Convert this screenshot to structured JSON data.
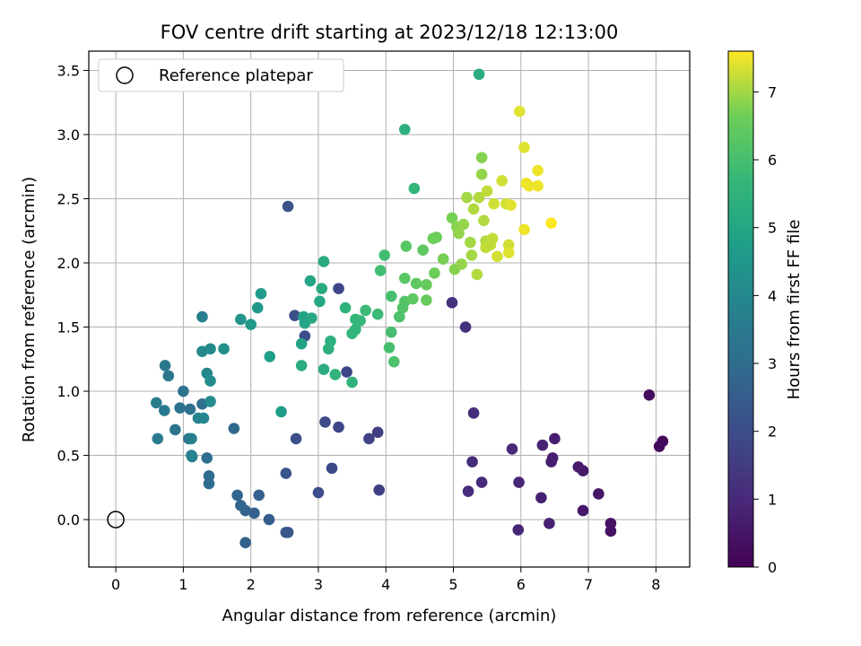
{
  "chart_data": {
    "type": "scatter",
    "title": "FOV centre drift starting at 2023/12/18 12:13:00",
    "xlabel": "Angular distance from reference (arcmin)",
    "ylabel": "Rotation from reference (arcmin)",
    "xlim": [
      -0.4,
      8.5
    ],
    "ylim": [
      -0.37,
      3.65
    ],
    "xticks": [
      0,
      1,
      2,
      3,
      4,
      5,
      6,
      7,
      8
    ],
    "yticks": [
      0.0,
      0.5,
      1.0,
      1.5,
      2.0,
      2.5,
      3.0,
      3.5
    ],
    "grid": true,
    "legend": {
      "placement": "top-left",
      "entries": [
        "Reference platepar"
      ]
    },
    "reference_point": {
      "x": 0,
      "y": 0
    },
    "colorbar": {
      "label": "Hours from first FF file",
      "min": 0,
      "max": 7.6,
      "ticks": [
        0,
        1,
        2,
        3,
        4,
        5,
        6,
        7
      ],
      "colormap": "viridis"
    },
    "points": [
      [
        7.9,
        0.97,
        0.3
      ],
      [
        8.05,
        0.57,
        0.2
      ],
      [
        8.1,
        0.61,
        0.2
      ],
      [
        7.33,
        -0.03,
        0.4
      ],
      [
        7.33,
        -0.09,
        0.4
      ],
      [
        7.15,
        0.2,
        0.5
      ],
      [
        6.92,
        0.07,
        0.5
      ],
      [
        6.92,
        0.38,
        0.6
      ],
      [
        6.85,
        0.41,
        0.6
      ],
      [
        6.5,
        0.63,
        0.7
      ],
      [
        6.47,
        0.48,
        0.7
      ],
      [
        6.45,
        0.45,
        0.7
      ],
      [
        6.42,
        -0.03,
        0.8
      ],
      [
        6.32,
        0.58,
        0.8
      ],
      [
        6.3,
        0.17,
        0.8
      ],
      [
        5.97,
        0.29,
        0.9
      ],
      [
        5.96,
        -0.08,
        0.9
      ],
      [
        5.87,
        0.55,
        1.0
      ],
      [
        5.42,
        0.29,
        1.0
      ],
      [
        5.28,
        0.45,
        1.1
      ],
      [
        5.22,
        0.22,
        1.1
      ],
      [
        5.3,
        0.83,
        1.1
      ],
      [
        5.18,
        1.5,
        1.2
      ],
      [
        4.98,
        1.69,
        1.2
      ],
      [
        3.9,
        0.23,
        1.6
      ],
      [
        3.88,
        0.68,
        1.6
      ],
      [
        3.75,
        0.63,
        1.7
      ],
      [
        3.42,
        1.15,
        1.8
      ],
      [
        3.3,
        0.72,
        1.8
      ],
      [
        3.3,
        1.8,
        1.8
      ],
      [
        3.2,
        0.4,
        1.9
      ],
      [
        3.1,
        0.76,
        1.9
      ],
      [
        3.0,
        0.21,
        2.0
      ],
      [
        2.8,
        1.43,
        2.0
      ],
      [
        2.65,
        1.59,
        2.1
      ],
      [
        2.67,
        0.63,
        2.1
      ],
      [
        2.55,
        2.44,
        2.2
      ],
      [
        2.55,
        -0.1,
        2.3
      ],
      [
        2.52,
        -0.1,
        2.3
      ],
      [
        2.52,
        0.36,
        2.3
      ],
      [
        2.27,
        0.0,
        2.5
      ],
      [
        2.12,
        0.19,
        2.6
      ],
      [
        2.05,
        0.05,
        2.6
      ],
      [
        1.92,
        -0.18,
        2.7
      ],
      [
        1.92,
        0.07,
        2.7
      ],
      [
        1.85,
        0.11,
        2.8
      ],
      [
        1.8,
        0.19,
        2.8
      ],
      [
        1.75,
        0.71,
        2.9
      ],
      [
        1.38,
        0.28,
        3.0
      ],
      [
        1.38,
        0.34,
        3.0
      ],
      [
        1.35,
        0.48,
        3.1
      ],
      [
        1.28,
        0.9,
        3.1
      ],
      [
        1.1,
        0.86,
        3.2
      ],
      [
        1.08,
        0.63,
        3.2
      ],
      [
        1.0,
        1.0,
        3.3
      ],
      [
        0.95,
        0.87,
        3.3
      ],
      [
        0.88,
        0.7,
        3.3
      ],
      [
        0.78,
        1.12,
        3.4
      ],
      [
        0.73,
        1.2,
        3.4
      ],
      [
        0.72,
        0.85,
        3.5
      ],
      [
        0.62,
        0.63,
        3.5
      ],
      [
        0.6,
        0.91,
        3.6
      ],
      [
        1.28,
        1.58,
        3.7
      ],
      [
        1.12,
        0.63,
        3.7
      ],
      [
        1.12,
        0.5,
        3.8
      ],
      [
        1.13,
        0.49,
        3.8
      ],
      [
        1.22,
        0.79,
        3.9
      ],
      [
        1.3,
        0.79,
        3.9
      ],
      [
        1.28,
        1.31,
        4.0
      ],
      [
        1.35,
        1.14,
        4.0
      ],
      [
        1.4,
        1.33,
        4.1
      ],
      [
        1.4,
        0.92,
        4.1
      ],
      [
        1.4,
        1.08,
        4.2
      ],
      [
        1.6,
        1.33,
        4.3
      ],
      [
        1.85,
        1.56,
        4.4
      ],
      [
        2.0,
        1.52,
        4.5
      ],
      [
        2.1,
        1.65,
        4.5
      ],
      [
        2.15,
        1.76,
        4.6
      ],
      [
        2.45,
        0.84,
        4.7
      ],
      [
        2.28,
        1.27,
        4.8
      ],
      [
        2.75,
        1.37,
        4.9
      ],
      [
        2.78,
        1.58,
        4.9
      ],
      [
        2.8,
        1.53,
        5.0
      ],
      [
        2.88,
        1.86,
        5.0
      ],
      [
        2.9,
        1.57,
        5.1
      ],
      [
        3.02,
        1.7,
        5.1
      ],
      [
        3.05,
        1.8,
        5.2
      ],
      [
        3.08,
        2.01,
        5.2
      ],
      [
        2.75,
        1.2,
        5.3
      ],
      [
        3.08,
        1.17,
        5.3
      ],
      [
        3.15,
        1.33,
        5.4
      ],
      [
        3.18,
        1.39,
        5.4
      ],
      [
        3.25,
        1.13,
        5.5
      ],
      [
        3.4,
        1.65,
        5.5
      ],
      [
        3.5,
        1.07,
        5.5
      ],
      [
        3.5,
        1.45,
        5.6
      ],
      [
        3.55,
        1.48,
        5.6
      ],
      [
        3.55,
        1.56,
        5.7
      ],
      [
        3.62,
        1.55,
        5.7
      ],
      [
        3.7,
        1.63,
        5.8
      ],
      [
        3.88,
        1.6,
        5.8
      ],
      [
        3.92,
        1.94,
        5.9
      ],
      [
        3.98,
        2.06,
        5.9
      ],
      [
        4.05,
        1.34,
        6.0
      ],
      [
        4.08,
        1.46,
        6.0
      ],
      [
        4.08,
        1.74,
        6.0
      ],
      [
        4.12,
        1.23,
        6.1
      ],
      [
        4.2,
        1.58,
        6.1
      ],
      [
        4.25,
        1.65,
        6.2
      ],
      [
        4.28,
        1.7,
        6.2
      ],
      [
        4.28,
        1.88,
        6.3
      ],
      [
        4.3,
        2.13,
        6.3
      ],
      [
        4.28,
        3.04,
        5.4
      ],
      [
        4.42,
        2.58,
        5.6
      ],
      [
        4.4,
        1.72,
        6.4
      ],
      [
        4.45,
        1.84,
        6.4
      ],
      [
        4.55,
        2.1,
        6.4
      ],
      [
        4.6,
        1.71,
        6.5
      ],
      [
        4.6,
        1.83,
        6.5
      ],
      [
        4.7,
        2.19,
        6.6
      ],
      [
        4.72,
        1.92,
        6.6
      ],
      [
        4.75,
        2.2,
        6.6
      ],
      [
        4.85,
        2.03,
        6.7
      ],
      [
        4.98,
        2.35,
        6.7
      ],
      [
        5.02,
        1.95,
        6.8
      ],
      [
        5.05,
        2.28,
        6.8
      ],
      [
        5.08,
        2.23,
        6.9
      ],
      [
        5.12,
        1.99,
        6.9
      ],
      [
        5.15,
        2.3,
        6.9
      ],
      [
        5.2,
        2.51,
        7.0
      ],
      [
        5.25,
        2.16,
        7.0
      ],
      [
        5.27,
        2.06,
        7.0
      ],
      [
        5.3,
        2.42,
        7.1
      ],
      [
        5.35,
        1.91,
        7.1
      ],
      [
        5.38,
        3.47,
        5.3
      ],
      [
        5.38,
        2.51,
        7.1
      ],
      [
        5.42,
        2.82,
        6.8
      ],
      [
        5.42,
        2.69,
        6.9
      ],
      [
        5.45,
        2.33,
        7.1
      ],
      [
        5.48,
        2.17,
        7.1
      ],
      [
        5.48,
        2.12,
        7.2
      ],
      [
        5.5,
        2.56,
        7.2
      ],
      [
        5.55,
        2.14,
        7.2
      ],
      [
        5.58,
        2.19,
        7.2
      ],
      [
        5.6,
        2.46,
        7.3
      ],
      [
        5.65,
        2.05,
        7.3
      ],
      [
        5.72,
        2.64,
        7.3
      ],
      [
        5.78,
        2.46,
        7.3
      ],
      [
        5.82,
        2.14,
        7.3
      ],
      [
        5.82,
        2.08,
        7.4
      ],
      [
        5.85,
        2.45,
        7.4
      ],
      [
        5.98,
        3.18,
        7.4
      ],
      [
        6.05,
        2.9,
        7.4
      ],
      [
        6.05,
        2.26,
        7.5
      ],
      [
        6.08,
        2.62,
        7.5
      ],
      [
        6.12,
        2.6,
        7.5
      ],
      [
        6.25,
        2.72,
        7.5
      ],
      [
        6.25,
        2.6,
        7.5
      ],
      [
        6.45,
        2.31,
        7.6
      ]
    ]
  }
}
